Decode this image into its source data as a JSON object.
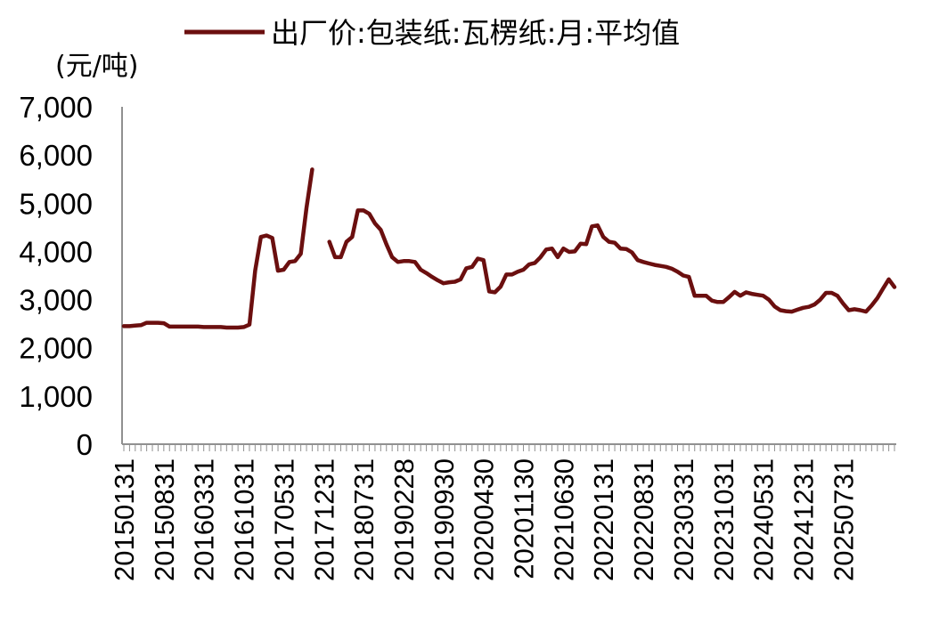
{
  "chart_data": {
    "type": "line",
    "legend": "出厂价:包装纸:瓦楞纸:月:平均值",
    "legend_position": "top",
    "unit": "(元/吨)",
    "ylim": [
      0,
      7000
    ],
    "yticks": [
      "0",
      "1,000",
      "2,000",
      "3,000",
      "4,000",
      "5,000",
      "6,000",
      "7,000"
    ],
    "xtick_labels": [
      "20150131",
      "20150831",
      "20160331",
      "20161031",
      "20170531",
      "20171231",
      "20180731",
      "20190228",
      "20190930",
      "20200430",
      "20201130",
      "20210630",
      "20220131",
      "20220831",
      "20230331",
      "20231031",
      "20240531",
      "20241231",
      "20250731"
    ],
    "grid": false,
    "series": [
      {
        "name": "出厂价:包装纸:瓦楞纸:月:平均值",
        "color": "#6b0f0f",
        "segments": [
          [
            2450,
            2450,
            2460,
            2470,
            2520,
            2520,
            2520,
            2510,
            2440,
            2440,
            2440,
            2440,
            2440,
            2440,
            2430,
            2430,
            2430,
            2430,
            2420,
            2420,
            2420,
            2430,
            2480,
            3600,
            4300,
            4330,
            4280,
            3600,
            3620,
            3780,
            3800,
            3950,
            4900,
            5700
          ],
          [
            4200,
            3880,
            3880,
            4200,
            4300,
            4850,
            4850,
            4780,
            4580,
            4450,
            4150,
            3880,
            3780,
            3800,
            3800,
            3780,
            3620,
            3550,
            3470,
            3400,
            3340,
            3360,
            3370,
            3420,
            3650,
            3680,
            3850,
            3820,
            3170,
            3150,
            3270,
            3520,
            3520,
            3580,
            3620,
            3730,
            3760,
            3880,
            4040,
            4060,
            3880,
            4060,
            3990,
            4000,
            4160,
            4150,
            4520,
            4540,
            4300,
            4200,
            4180,
            4060,
            4050,
            3980,
            3820,
            3780,
            3750,
            3720,
            3700,
            3680,
            3640,
            3580,
            3500,
            3470,
            3080,
            3080,
            3080,
            2980,
            2950,
            2950,
            3050,
            3160,
            3080,
            3150,
            3120,
            3100,
            3080,
            3000,
            2860,
            2780,
            2760,
            2750,
            2790,
            2830,
            2850,
            2900,
            3000,
            3140,
            3140,
            3080,
            2920,
            2780,
            2800,
            2780,
            2750,
            2880,
            3030,
            3230,
            3420,
            3260
          ]
        ]
      }
    ]
  }
}
